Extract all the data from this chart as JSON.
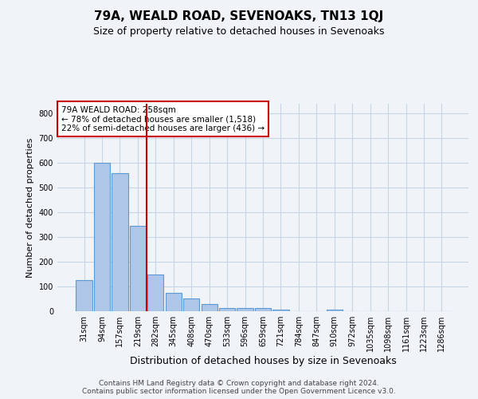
{
  "title": "79A, WEALD ROAD, SEVENOAKS, TN13 1QJ",
  "subtitle": "Size of property relative to detached houses in Sevenoaks",
  "xlabel": "Distribution of detached houses by size in Sevenoaks",
  "ylabel": "Number of detached properties",
  "categories": [
    "31sqm",
    "94sqm",
    "157sqm",
    "219sqm",
    "282sqm",
    "345sqm",
    "408sqm",
    "470sqm",
    "533sqm",
    "596sqm",
    "659sqm",
    "721sqm",
    "784sqm",
    "847sqm",
    "910sqm",
    "972sqm",
    "1035sqm",
    "1098sqm",
    "1161sqm",
    "1223sqm",
    "1286sqm"
  ],
  "values": [
    125,
    600,
    558,
    347,
    150,
    75,
    52,
    30,
    14,
    13,
    13,
    8,
    0,
    0,
    8,
    0,
    0,
    0,
    0,
    0,
    0
  ],
  "bar_color": "#aec6e8",
  "bar_edge_color": "#5b9bd5",
  "vline_index": 4,
  "vline_color": "#cc0000",
  "annotation_text": "79A WEALD ROAD: 258sqm\n← 78% of detached houses are smaller (1,518)\n22% of semi-detached houses are larger (436) →",
  "annotation_box_color": "#ffffff",
  "annotation_box_edge": "#cc0000",
  "ylim": [
    0,
    840
  ],
  "yticks": [
    0,
    100,
    200,
    300,
    400,
    500,
    600,
    700,
    800
  ],
  "bg_color": "#f0f4f8",
  "grid_color": "#c8d4e4",
  "footer_line1": "Contains HM Land Registry data © Crown copyright and database right 2024.",
  "footer_line2": "Contains public sector information licensed under the Open Government Licence v3.0.",
  "title_fontsize": 11,
  "subtitle_fontsize": 9,
  "ylabel_fontsize": 8,
  "xlabel_fontsize": 9,
  "tick_fontsize": 7,
  "annotation_fontsize": 7.5,
  "footer_fontsize": 6.5
}
